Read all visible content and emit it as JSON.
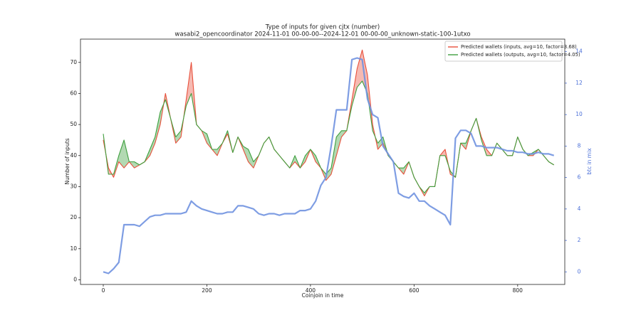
{
  "chart_data": {
    "type": "line",
    "title": "Type of inputs for given cjtx (number)",
    "subtitle": "wasabi2_opencoordinator 2024-11-01 00-00-00--2024-12-01 00-00-00_unknown-static-100-1utxo",
    "xlabel": "Coinjoin in time",
    "ylabel": "Number of inputs",
    "y2label": "btc in mix",
    "x": [
      0,
      10,
      20,
      30,
      40,
      50,
      60,
      70,
      80,
      90,
      100,
      110,
      120,
      130,
      140,
      150,
      160,
      170,
      180,
      190,
      200,
      210,
      220,
      230,
      240,
      250,
      260,
      270,
      280,
      290,
      300,
      310,
      320,
      330,
      340,
      350,
      360,
      370,
      380,
      390,
      400,
      410,
      420,
      430,
      440,
      450,
      460,
      470,
      480,
      490,
      500,
      510,
      520,
      530,
      540,
      550,
      560,
      570,
      580,
      590,
      600,
      610,
      620,
      630,
      640,
      650,
      660,
      670,
      680,
      690,
      700,
      710,
      720,
      730,
      740,
      750,
      760,
      770,
      780,
      790,
      800,
      810,
      820,
      830,
      840,
      850,
      860,
      870
    ],
    "series": [
      {
        "name": "Predicted wallets (inputs, avg=10, factor=3.68)",
        "color": "#e8503c",
        "values": [
          45,
          36,
          33,
          38,
          36,
          38,
          36,
          37,
          38,
          40,
          44,
          50,
          60,
          52,
          44,
          46,
          58,
          70,
          50,
          48,
          44,
          42,
          40,
          44,
          47,
          41,
          46,
          42,
          38,
          36,
          40,
          44,
          46,
          42,
          40,
          38,
          36,
          38,
          36,
          38,
          42,
          38,
          36,
          32,
          34,
          40,
          46,
          48,
          58,
          68,
          74,
          66,
          50,
          42,
          44,
          40,
          38,
          36,
          34,
          38,
          33,
          30,
          27,
          30,
          30,
          40,
          42,
          34,
          33,
          44,
          42,
          48,
          52,
          46,
          42,
          40,
          44,
          42,
          40,
          40,
          46,
          42,
          40,
          40,
          42,
          40,
          38,
          37
        ]
      },
      {
        "name": "Predicted wallets (outputs, avg=10, factor=4.05)",
        "color": "#3fa03f",
        "values": [
          47,
          34,
          34,
          40,
          45,
          38,
          38,
          37,
          38,
          42,
          46,
          54,
          58,
          52,
          46,
          48,
          56,
          60,
          50,
          48,
          47,
          42,
          42,
          44,
          48,
          41,
          46,
          43,
          42,
          38,
          40,
          44,
          46,
          42,
          40,
          38,
          36,
          40,
          36,
          40,
          42,
          40,
          36,
          34,
          36,
          46,
          48,
          48,
          56,
          62,
          64,
          60,
          48,
          44,
          46,
          40,
          38,
          36,
          36,
          38,
          33,
          30,
          28,
          30,
          30,
          40,
          40,
          35,
          33,
          44,
          44,
          48,
          52,
          45,
          40,
          40,
          44,
          42,
          40,
          40,
          46,
          42,
          40,
          41,
          42,
          40,
          38,
          37
        ]
      },
      {
        "color": "#7092e0",
        "axis": "y2",
        "values": [
          0,
          -0.1,
          0.2,
          0.6,
          3,
          3,
          3,
          2.9,
          3.2,
          3.5,
          3.6,
          3.6,
          3.7,
          3.7,
          3.7,
          3.7,
          3.8,
          4.5,
          4.2,
          4.0,
          3.9,
          3.8,
          3.7,
          3.7,
          3.8,
          3.8,
          4.2,
          4.2,
          4.1,
          4.0,
          3.7,
          3.6,
          3.7,
          3.7,
          3.6,
          3.7,
          3.7,
          3.7,
          3.9,
          3.9,
          4.0,
          4.5,
          5.5,
          6.0,
          8.0,
          10.3,
          10.3,
          10.3,
          13.5,
          13.6,
          13.5,
          11.0,
          10.0,
          9.8,
          8.0,
          7.5,
          7.0,
          5.0,
          4.8,
          4.7,
          5.0,
          4.5,
          4.5,
          4.2,
          4.0,
          3.8,
          3.6,
          3.0,
          8.5,
          9.0,
          9.0,
          8.8,
          8.0,
          8.0,
          7.9,
          7.9,
          7.9,
          7.8,
          7.7,
          7.7,
          7.6,
          7.6,
          7.5,
          7.5,
          7.6,
          7.5,
          7.5,
          7.4
        ]
      }
    ],
    "xlim": [
      -44,
      891
    ],
    "xticks": [
      0,
      200,
      400,
      600,
      800
    ],
    "ylim": [
      -1.5,
      77.5
    ],
    "yticks": [
      0,
      10,
      20,
      30,
      40,
      50,
      60,
      70
    ],
    "y2lim": [
      -0.8,
      14.8
    ],
    "y2ticks": [
      0,
      2,
      4,
      6,
      8,
      10,
      12,
      14
    ],
    "legend": "upper right"
  }
}
